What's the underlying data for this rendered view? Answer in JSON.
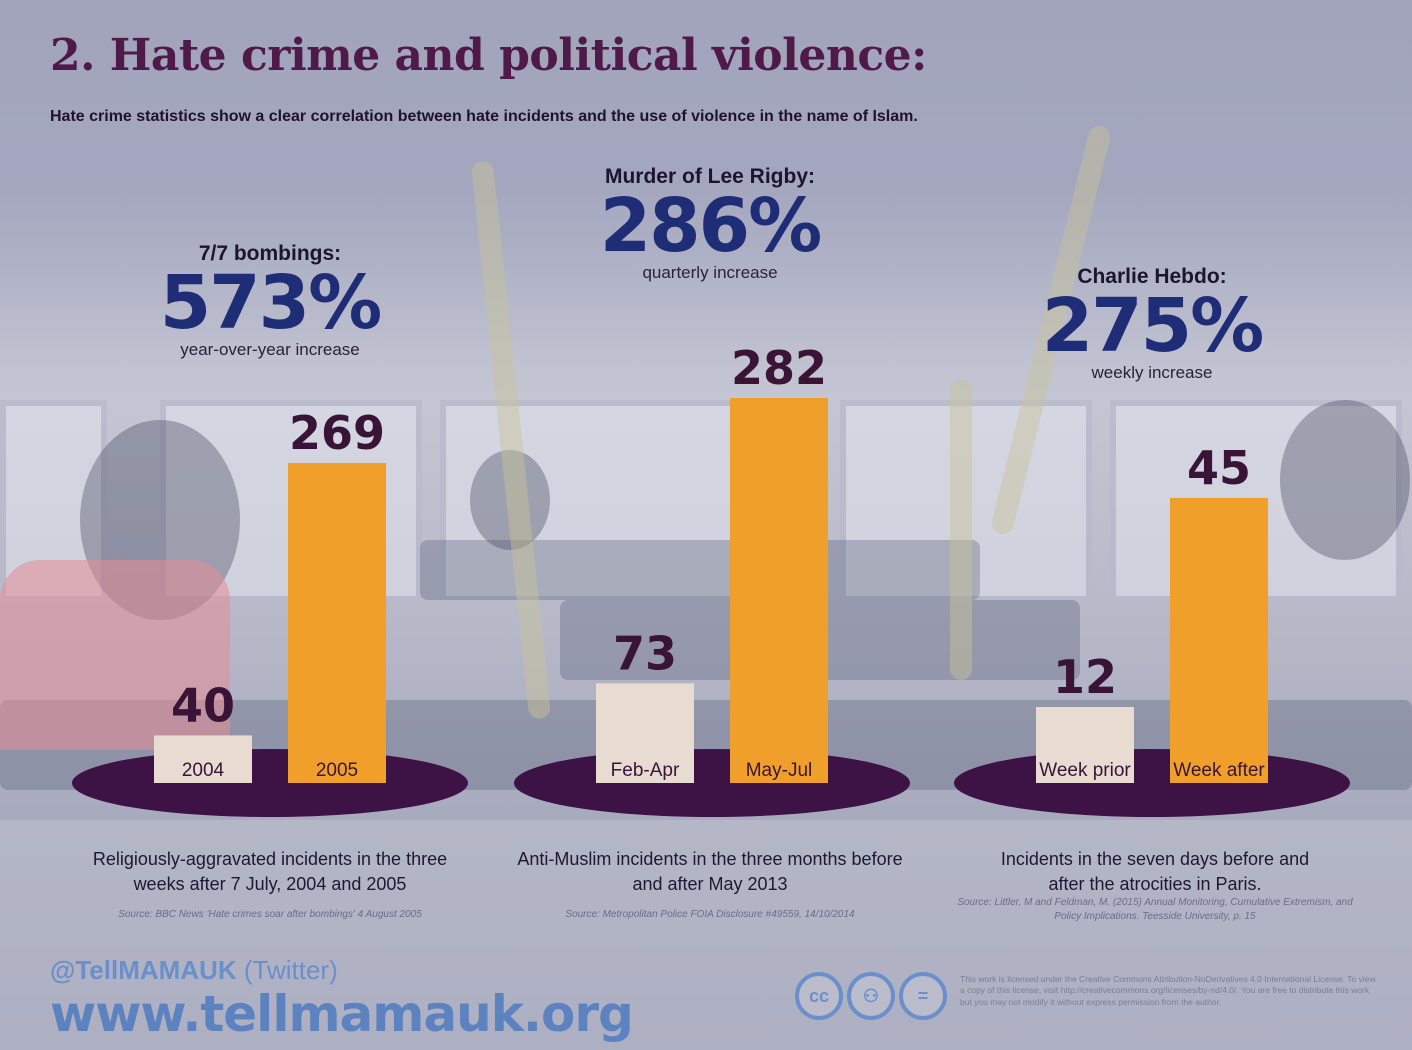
{
  "title": "2. Hate crime and political violence:",
  "subtitle": "Hate crime statistics show a clear correlation between hate incidents and the use of violence in the name of Islam.",
  "colors": {
    "title": "#4f1a48",
    "before_bar": "#e7dbd2",
    "after_bar": "#f0a02a",
    "base": "#3d1244",
    "percent": "#1f2d77",
    "links": "#5d82c0"
  },
  "panels": [
    {
      "event": "7/7 bombings:",
      "percent": "573%",
      "increase_label": "year-over-year increase",
      "caption_line1": "Religiously-aggravated incidents in the three",
      "caption_line2": "weeks after 7 July, 2004 and 2005",
      "source": "Source: BBC News 'Hate crimes soar after bombings' 4 August 2005"
    },
    {
      "event": "Murder of Lee Rigby:",
      "percent": "286%",
      "increase_label": "quarterly increase",
      "caption_line1": "Anti-Muslim incidents in the three months before",
      "caption_line2": "and after May 2013",
      "source": "Source: Metropolitan Police FOIA Disclosure #49559, 14/10/2014"
    },
    {
      "event": "Charlie Hebdo:",
      "percent": "275%",
      "increase_label": "weekly increase",
      "caption_line1": "Incidents in the seven days before and",
      "caption_line2": "after the atrocities in Paris.",
      "source": "Source: Littler, M and Feldman, M. (2015) Annual Monitoring, Cumulative Extremism, and Policy Implications. Teesside University, p. 15"
    }
  ],
  "chart_data": [
    {
      "type": "bar",
      "categories": [
        "2004",
        "2005"
      ],
      "values": [
        40,
        269
      ]
    },
    {
      "type": "bar",
      "categories": [
        "Feb-Apr",
        "May-Jul"
      ],
      "values": [
        73,
        282
      ]
    },
    {
      "type": "bar",
      "categories": [
        "Week prior",
        "Week after"
      ],
      "values": [
        12,
        45
      ]
    }
  ],
  "footer": {
    "twitter_handle": "@TellMAMAUK",
    "twitter_suffix": " (Twitter)",
    "website": "www.tellmamauk.org",
    "cc_icons": [
      "cc-icon",
      "by-icon",
      "nd-icon"
    ],
    "cc_glyphs": [
      "cc",
      "⚇",
      "="
    ],
    "license": "This work is licensed under the Creative Commons Attribution-NoDerivatives 4.0 International License. To view a copy of this license, visit http://creativecommons.org/licenses/by-nd/4.0/. You are free to distribute this work but you may not modify it without express permission from the author."
  }
}
